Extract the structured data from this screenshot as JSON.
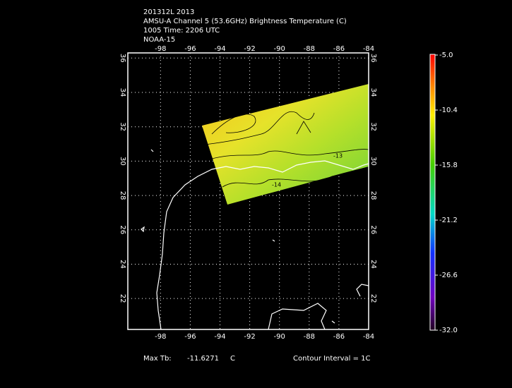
{
  "header": {
    "lines": [
      "201312L 2013",
      "AMSU-A Channel 5 (53.6GHz) Brightness Temperature (C)",
      "1005 Time: 2206 UTC",
      "NOAA-15"
    ]
  },
  "map": {
    "xlim": [
      -100.2,
      -84
    ],
    "ylim": [
      20.2,
      36.3
    ],
    "xticks": [
      -98,
      -96,
      -94,
      -92,
      -90,
      -88,
      -86,
      -84
    ],
    "yticks": [
      22,
      24,
      26,
      28,
      30,
      32,
      34,
      36
    ],
    "contour_labels": [
      "-13",
      "-14"
    ]
  },
  "colorbar": {
    "lim": [
      -32,
      -5
    ],
    "ticks": [
      {
        "value": -5,
        "label": "-5.0"
      },
      {
        "value": -10.4,
        "label": "-10.4"
      },
      {
        "value": -15.8,
        "label": "-15.8"
      },
      {
        "value": -21.2,
        "label": "-21.2"
      },
      {
        "value": -26.6,
        "label": "-26.6"
      },
      {
        "value": -32,
        "label": "-32.0"
      }
    ]
  },
  "footer": {
    "max_label": "Max Tb:",
    "max_value": "-11.6271",
    "unit": "C",
    "contour_interval": "Contour Interval = 1C"
  }
}
